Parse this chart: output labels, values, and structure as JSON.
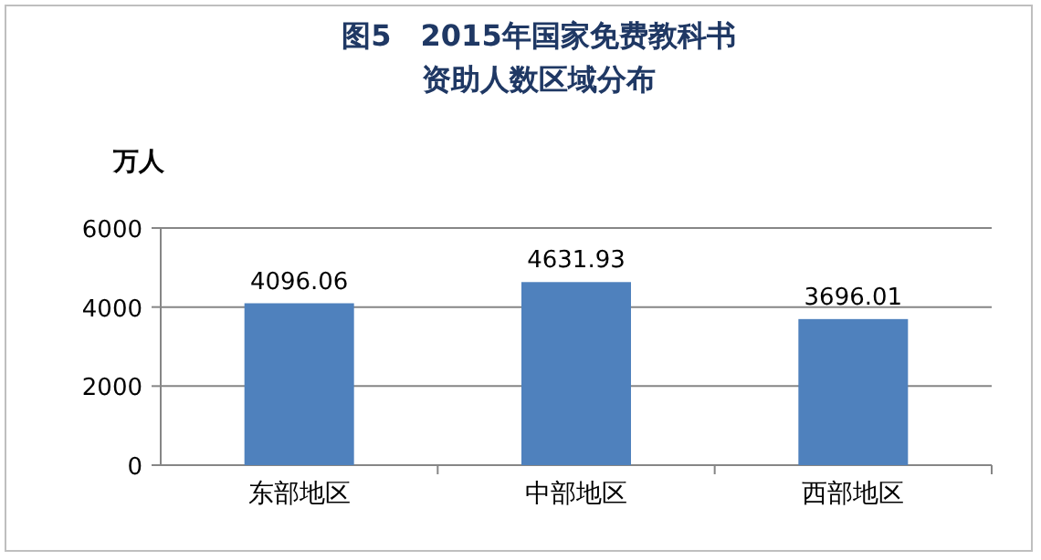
{
  "chart_data": {
    "type": "bar",
    "title": "图5　2015年国家免费教科书资助人数区域分布",
    "ylabel": "万人",
    "categories": [
      "东部地区",
      "中部地区",
      "西部地区"
    ],
    "values": [
      4096.06,
      4631.93,
      3696.01
    ],
    "color": "#4f81bd",
    "ylim": [
      0,
      6000
    ],
    "yticks": [
      0,
      2000,
      4000,
      6000
    ],
    "grid": "y",
    "data_labels": true
  }
}
